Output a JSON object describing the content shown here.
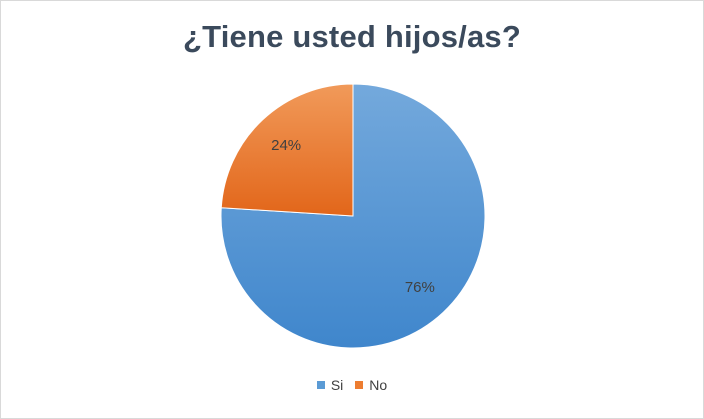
{
  "chart_data": {
    "type": "pie",
    "title": "¿Tiene usted hijos/as?",
    "categories": [
      "Si",
      "No"
    ],
    "values": [
      76,
      24
    ],
    "labels": [
      "76%",
      "24%"
    ],
    "colors": [
      "#5b9bd5",
      "#ed7d31"
    ],
    "legend_position": "bottom"
  }
}
